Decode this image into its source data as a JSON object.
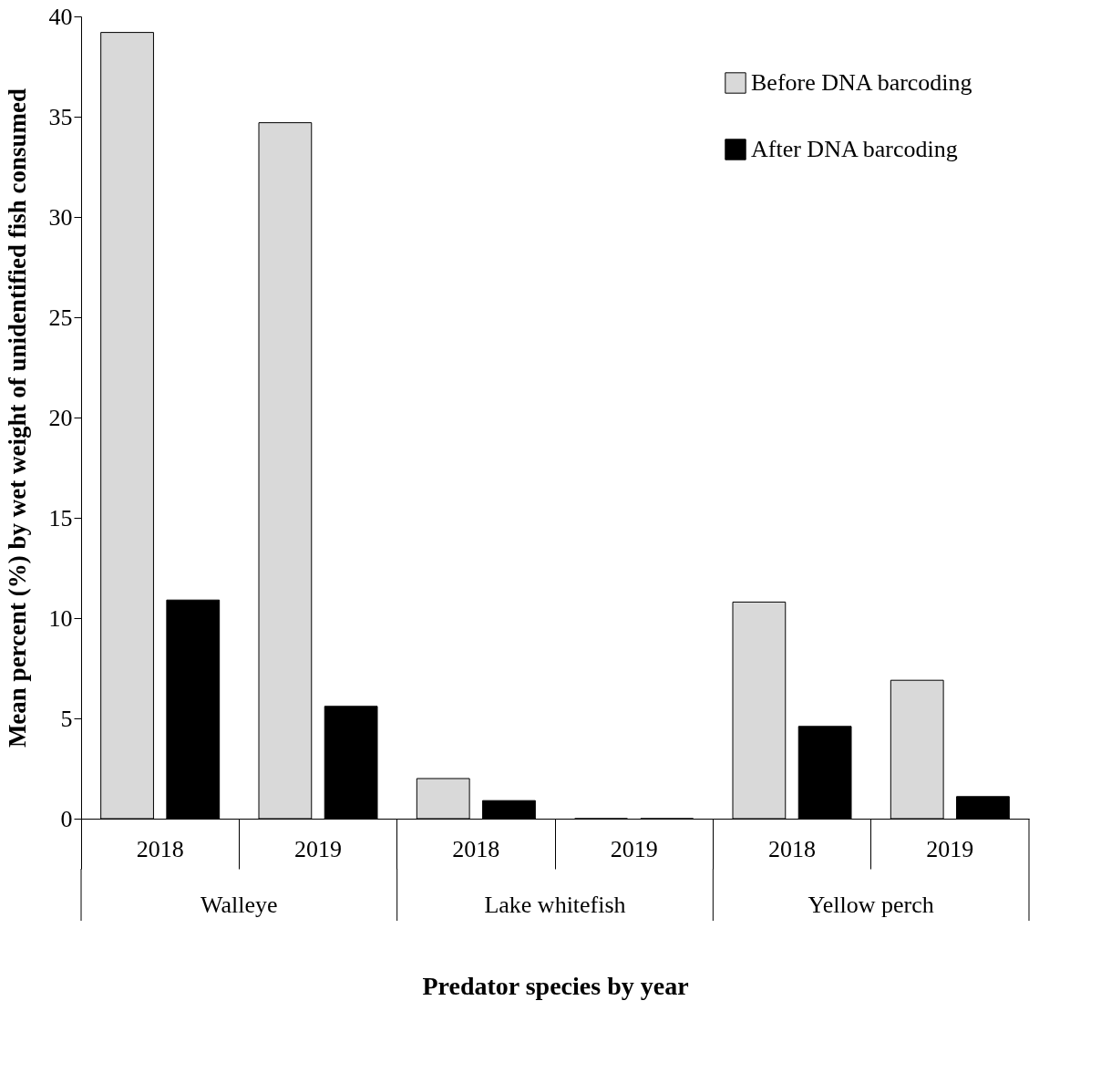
{
  "chart_data": {
    "type": "bar",
    "categories": [
      "2018",
      "2019",
      "2018",
      "2019",
      "2018",
      "2019"
    ],
    "series": [
      {
        "name": "Before DNA barcoding",
        "color": "#d9d9d9",
        "values": [
          39.2,
          34.7,
          2.0,
          0,
          10.8,
          6.9
        ]
      },
      {
        "name": "After DNA barcoding",
        "color": "#000000",
        "values": [
          10.9,
          5.6,
          0.9,
          0,
          4.6,
          1.1
        ]
      }
    ],
    "annotations": [
      "Walleye",
      "Lake whitefish",
      "Yellow perch"
    ],
    "xlabel": "Predator species by year",
    "ylabel": "Mean percent (%) by wet weight of unidentified fish consumed",
    "ylim": [
      0,
      40
    ],
    "yticks": [
      0,
      5,
      10,
      15,
      20,
      25,
      30,
      35,
      40
    ],
    "grid": false,
    "legend": "top right"
  }
}
